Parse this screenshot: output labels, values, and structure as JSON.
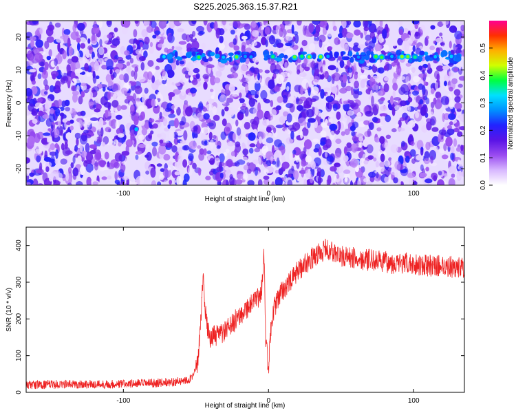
{
  "title": "S225.2025.363.15.37.R21",
  "chart_data": [
    {
      "type": "heatmap",
      "name": "spectrogram",
      "xlabel": "Height of straight line (km)",
      "ylabel": "Frequency (Hz)",
      "xlim": [
        -167,
        135
      ],
      "ylim": [
        -25,
        25
      ],
      "xticks": [
        -100,
        0,
        100
      ],
      "xtick_labels": [
        "-100",
        "0",
        "100"
      ],
      "yticks": [
        -20,
        -10,
        0,
        10,
        20
      ],
      "ytick_labels": [
        "-20",
        "-10",
        "0",
        "10",
        "20"
      ],
      "colorbar": {
        "label": "Normalized spectral amplitude",
        "range": [
          0,
          0.6
        ],
        "ticks": [
          0,
          0.1,
          0.2,
          0.3,
          0.4,
          0.5
        ],
        "tick_labels": [
          "0.0",
          "0.1",
          "0.2",
          "0.3",
          "0.4",
          "0.5"
        ],
        "colors": [
          "#ffffff",
          "#d8b8ff",
          "#9a4cf0",
          "#5a14e6",
          "#2222ff",
          "#0090ff",
          "#00e0ff",
          "#00ff40",
          "#d0ff00",
          "#ffb000",
          "#ff3000",
          "#ff0090"
        ]
      },
      "signal_band": {
        "frequency_hz": 14,
        "x_range": [
          -75,
          132
        ],
        "peak_x": 95,
        "peak_amplitude": 0.55
      }
    },
    {
      "type": "line",
      "name": "snr",
      "xlabel": "Height of straight line (km)",
      "ylabel": "SNR (10 * v/v)",
      "xlim": [
        -167,
        135
      ],
      "ylim": [
        0,
        450
      ],
      "xticks": [
        -100,
        0,
        100
      ],
      "xtick_labels": [
        "-100",
        "0",
        "100"
      ],
      "yticks": [
        0,
        100,
        200,
        300,
        400
      ],
      "ytick_labels": [
        "0",
        "100",
        "200",
        "300",
        "400"
      ],
      "color": "#ee2222",
      "series": [
        {
          "name": "SNR",
          "x": [
            -167,
            -140,
            -110,
            -80,
            -60,
            -52,
            -49,
            -47,
            -46,
            -45,
            -44,
            -42,
            -40,
            -35,
            -30,
            -25,
            -20,
            -15,
            -10,
            -6,
            -4,
            -3,
            -2,
            0,
            2,
            5,
            10,
            15,
            20,
            25,
            30,
            35,
            40,
            45,
            50,
            60,
            70,
            80,
            90,
            100,
            110,
            120,
            130,
            135
          ],
          "y": [
            20,
            22,
            22,
            25,
            30,
            40,
            80,
            160,
            250,
            330,
            230,
            170,
            150,
            155,
            165,
            185,
            210,
            230,
            245,
            260,
            300,
            380,
            150,
            60,
            200,
            240,
            280,
            300,
            330,
            350,
            365,
            380,
            390,
            380,
            370,
            365,
            360,
            355,
            350,
            350,
            345,
            345,
            340,
            340
          ],
          "noise_amplitude": 30
        }
      ]
    }
  ]
}
